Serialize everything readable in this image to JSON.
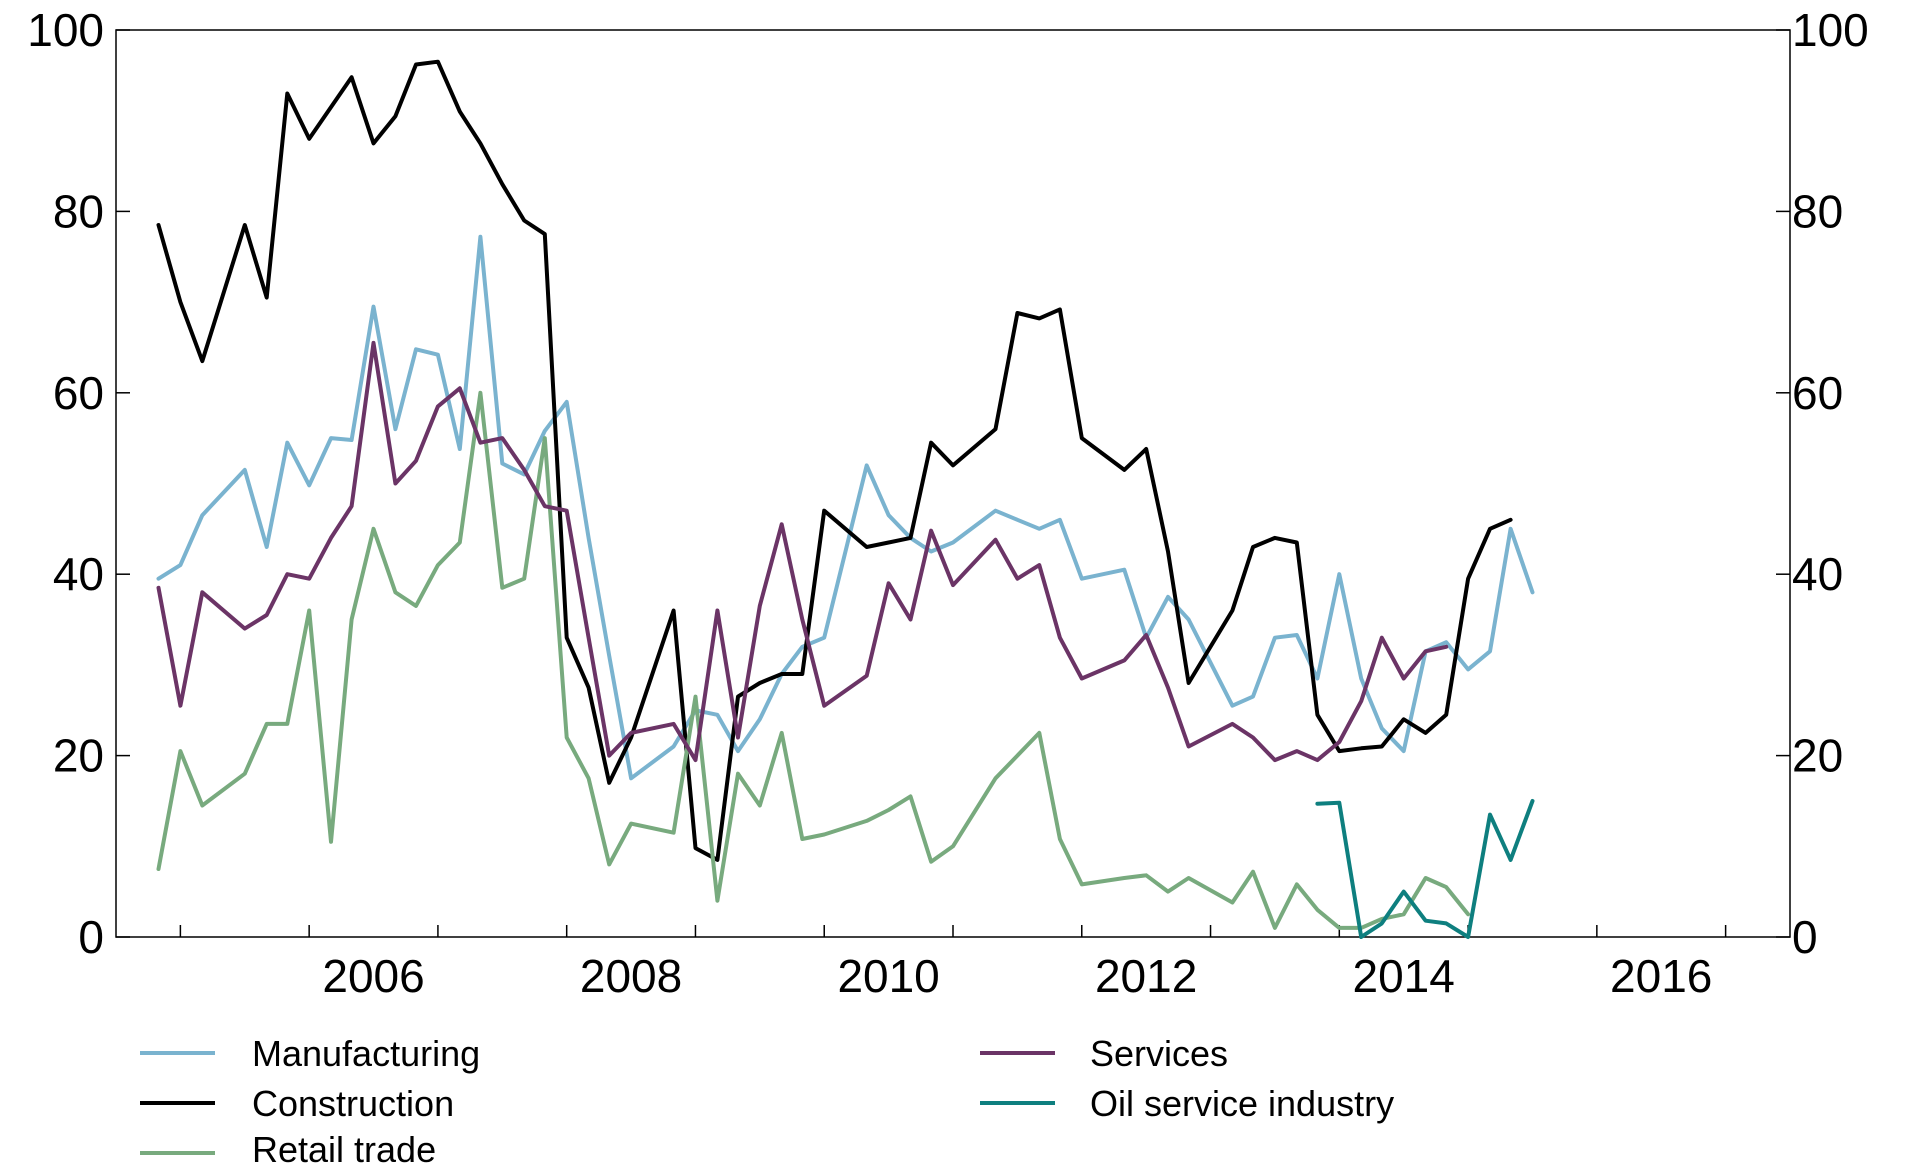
{
  "chart_data": {
    "type": "line",
    "title": "",
    "xlabel": "",
    "ylabel": "",
    "xlim": [
      2004.5,
      2017.5
    ],
    "ylim": [
      0,
      100
    ],
    "x_ticks": [
      "2006",
      "2008",
      "2010",
      "2012",
      "2014",
      "2016"
    ],
    "y_ticks_left": [
      "0",
      "20",
      "40",
      "60",
      "80",
      "100"
    ],
    "y_ticks_right": [
      "0",
      "20",
      "40",
      "60",
      "80",
      "100"
    ],
    "grid": false,
    "legend_position": "bottom",
    "series": [
      {
        "name": "Manufacturing",
        "color": "#7ab3cf",
        "points": [
          [
            2004.83,
            39.5
          ],
          [
            2005.0,
            41.0
          ],
          [
            2005.17,
            46.5
          ],
          [
            2005.5,
            51.5
          ],
          [
            2005.67,
            43.0
          ],
          [
            2005.83,
            54.5
          ],
          [
            2006.0,
            49.8
          ],
          [
            2006.17,
            55.0
          ],
          [
            2006.33,
            54.8
          ],
          [
            2006.5,
            69.5
          ],
          [
            2006.67,
            56.0
          ],
          [
            2006.83,
            64.8
          ],
          [
            2007.0,
            64.2
          ],
          [
            2007.17,
            53.8
          ],
          [
            2007.33,
            77.2
          ],
          [
            2007.5,
            52.2
          ],
          [
            2007.67,
            51.0
          ],
          [
            2007.83,
            55.8
          ],
          [
            2008.0,
            59.0
          ],
          [
            2008.17,
            44.0
          ],
          [
            2008.33,
            31.0
          ],
          [
            2008.5,
            17.5
          ],
          [
            2008.83,
            21.0
          ],
          [
            2009.0,
            25.0
          ],
          [
            2009.17,
            24.5
          ],
          [
            2009.33,
            20.5
          ],
          [
            2009.5,
            24.0
          ],
          [
            2009.67,
            29.0
          ],
          [
            2009.83,
            32.0
          ],
          [
            2010.0,
            33.0
          ],
          [
            2010.33,
            52.0
          ],
          [
            2010.5,
            46.5
          ],
          [
            2010.67,
            44.0
          ],
          [
            2010.83,
            42.5
          ],
          [
            2011.0,
            43.5
          ],
          [
            2011.33,
            47.0
          ],
          [
            2011.5,
            46.0
          ],
          [
            2011.67,
            45.0
          ],
          [
            2011.83,
            46.0
          ],
          [
            2012.0,
            39.5
          ],
          [
            2012.33,
            40.5
          ],
          [
            2012.5,
            33.0
          ],
          [
            2012.67,
            37.5
          ],
          [
            2012.83,
            35.0
          ],
          [
            2013.17,
            25.5
          ],
          [
            2013.33,
            26.5
          ],
          [
            2013.5,
            33.0
          ],
          [
            2013.67,
            33.3
          ],
          [
            2013.83,
            28.5
          ],
          [
            2014.0,
            40.0
          ],
          [
            2014.17,
            28.5
          ],
          [
            2014.33,
            23.0
          ],
          [
            2014.5,
            20.5
          ],
          [
            2014.67,
            31.5
          ],
          [
            2014.83,
            32.5
          ],
          [
            2015.0,
            29.5
          ],
          [
            2015.17,
            31.5
          ],
          [
            2015.33,
            45.0
          ],
          [
            2015.5,
            38.0
          ]
        ]
      },
      {
        "name": "Construction",
        "color": "#000000",
        "points": [
          [
            2004.83,
            78.5
          ],
          [
            2005.0,
            70.0
          ],
          [
            2005.17,
            63.5
          ],
          [
            2005.5,
            78.5
          ],
          [
            2005.67,
            70.5
          ],
          [
            2005.83,
            93.0
          ],
          [
            2006.0,
            88.0
          ],
          [
            2006.17,
            91.5
          ],
          [
            2006.33,
            94.8
          ],
          [
            2006.5,
            87.5
          ],
          [
            2006.67,
            90.5
          ],
          [
            2006.83,
            96.2
          ],
          [
            2007.0,
            96.5
          ],
          [
            2007.17,
            91.0
          ],
          [
            2007.33,
            87.5
          ],
          [
            2007.5,
            83.0
          ],
          [
            2007.67,
            79.0
          ],
          [
            2007.83,
            77.5
          ],
          [
            2008.0,
            33.0
          ],
          [
            2008.17,
            27.5
          ],
          [
            2008.33,
            17.0
          ],
          [
            2008.5,
            22.0
          ],
          [
            2008.83,
            36.0
          ],
          [
            2009.0,
            9.8
          ],
          [
            2009.17,
            8.5
          ],
          [
            2009.33,
            26.5
          ],
          [
            2009.5,
            28.0
          ],
          [
            2009.67,
            29.0
          ],
          [
            2009.83,
            29.0
          ],
          [
            2010.0,
            47.0
          ],
          [
            2010.33,
            43.0
          ],
          [
            2010.5,
            43.5
          ],
          [
            2010.67,
            44.0
          ],
          [
            2010.83,
            54.5
          ],
          [
            2011.0,
            52.0
          ],
          [
            2011.33,
            56.0
          ],
          [
            2011.5,
            68.8
          ],
          [
            2011.67,
            68.2
          ],
          [
            2011.83,
            69.2
          ],
          [
            2012.0,
            55.0
          ],
          [
            2012.33,
            51.5
          ],
          [
            2012.5,
            53.8
          ],
          [
            2012.67,
            42.5
          ],
          [
            2012.83,
            28.0
          ],
          [
            2013.17,
            36.0
          ],
          [
            2013.33,
            43.0
          ],
          [
            2013.5,
            44.0
          ],
          [
            2013.67,
            43.5
          ],
          [
            2013.83,
            24.5
          ],
          [
            2014.0,
            20.5
          ],
          [
            2014.17,
            20.8
          ],
          [
            2014.33,
            21.0
          ],
          [
            2014.5,
            24.0
          ],
          [
            2014.67,
            22.5
          ],
          [
            2014.83,
            24.5
          ],
          [
            2015.0,
            39.5
          ],
          [
            2015.17,
            45.0
          ],
          [
            2015.33,
            46.0
          ]
        ]
      },
      {
        "name": "Retail trade",
        "color": "#78aa7e",
        "points": [
          [
            2004.83,
            7.5
          ],
          [
            2005.0,
            20.5
          ],
          [
            2005.17,
            14.5
          ],
          [
            2005.5,
            18.0
          ],
          [
            2005.67,
            23.5
          ],
          [
            2005.83,
            23.5
          ],
          [
            2006.0,
            36.0
          ],
          [
            2006.17,
            10.5
          ],
          [
            2006.33,
            35.0
          ],
          [
            2006.5,
            45.0
          ],
          [
            2006.67,
            38.0
          ],
          [
            2006.83,
            36.5
          ],
          [
            2007.0,
            41.0
          ],
          [
            2007.17,
            43.5
          ],
          [
            2007.33,
            60.0
          ],
          [
            2007.5,
            38.5
          ],
          [
            2007.67,
            39.5
          ],
          [
            2007.83,
            55.0
          ],
          [
            2008.0,
            22.0
          ],
          [
            2008.17,
            17.5
          ],
          [
            2008.33,
            8.0
          ],
          [
            2008.5,
            12.5
          ],
          [
            2008.83,
            11.5
          ],
          [
            2009.0,
            26.5
          ],
          [
            2009.17,
            4.0
          ],
          [
            2009.33,
            18.0
          ],
          [
            2009.5,
            14.5
          ],
          [
            2009.67,
            22.5
          ],
          [
            2009.83,
            10.8
          ],
          [
            2010.0,
            11.3
          ],
          [
            2010.33,
            12.8
          ],
          [
            2010.5,
            14.0
          ],
          [
            2010.67,
            15.5
          ],
          [
            2010.83,
            8.3
          ],
          [
            2011.0,
            10.0
          ],
          [
            2011.33,
            17.5
          ],
          [
            2011.5,
            20.0
          ],
          [
            2011.67,
            22.5
          ],
          [
            2011.83,
            10.8
          ],
          [
            2012.0,
            5.8
          ],
          [
            2012.33,
            6.5
          ],
          [
            2012.5,
            6.8
          ],
          [
            2012.67,
            5.0
          ],
          [
            2012.83,
            6.5
          ],
          [
            2013.17,
            3.8
          ],
          [
            2013.33,
            7.2
          ],
          [
            2013.5,
            1.0
          ],
          [
            2013.67,
            5.8
          ],
          [
            2013.83,
            3.0
          ],
          [
            2014.0,
            1.0
          ],
          [
            2014.17,
            1.0
          ],
          [
            2014.33,
            2.0
          ],
          [
            2014.5,
            2.5
          ],
          [
            2014.67,
            6.5
          ],
          [
            2014.83,
            5.5
          ],
          [
            2015.0,
            2.5
          ]
        ]
      },
      {
        "name": "Services",
        "color": "#6b3466",
        "points": [
          [
            2004.83,
            38.5
          ],
          [
            2005.0,
            25.5
          ],
          [
            2005.17,
            38.0
          ],
          [
            2005.5,
            34.0
          ],
          [
            2005.67,
            35.5
          ],
          [
            2005.83,
            40.0
          ],
          [
            2006.0,
            39.5
          ],
          [
            2006.17,
            44.0
          ],
          [
            2006.33,
            47.5
          ],
          [
            2006.5,
            65.5
          ],
          [
            2006.67,
            50.0
          ],
          [
            2006.83,
            52.5
          ],
          [
            2007.0,
            58.5
          ],
          [
            2007.17,
            60.5
          ],
          [
            2007.33,
            54.5
          ],
          [
            2007.5,
            55.0
          ],
          [
            2007.67,
            51.5
          ],
          [
            2007.83,
            47.5
          ],
          [
            2008.0,
            47.0
          ],
          [
            2008.17,
            33.0
          ],
          [
            2008.33,
            20.0
          ],
          [
            2008.5,
            22.5
          ],
          [
            2008.83,
            23.5
          ],
          [
            2009.0,
            19.5
          ],
          [
            2009.17,
            36.0
          ],
          [
            2009.33,
            22.0
          ],
          [
            2009.5,
            36.5
          ],
          [
            2009.67,
            45.5
          ],
          [
            2009.83,
            35.0
          ],
          [
            2010.0,
            25.5
          ],
          [
            2010.33,
            28.8
          ],
          [
            2010.5,
            39.0
          ],
          [
            2010.67,
            35.0
          ],
          [
            2010.83,
            44.8
          ],
          [
            2011.0,
            38.8
          ],
          [
            2011.33,
            43.8
          ],
          [
            2011.5,
            39.5
          ],
          [
            2011.67,
            41.0
          ],
          [
            2011.83,
            33.0
          ],
          [
            2012.0,
            28.5
          ],
          [
            2012.33,
            30.5
          ],
          [
            2012.5,
            33.3
          ],
          [
            2012.67,
            27.5
          ],
          [
            2012.83,
            21.0
          ],
          [
            2013.17,
            23.5
          ],
          [
            2013.33,
            22.0
          ],
          [
            2013.5,
            19.5
          ],
          [
            2013.67,
            20.5
          ],
          [
            2013.83,
            19.5
          ],
          [
            2014.0,
            21.5
          ],
          [
            2014.17,
            26.0
          ],
          [
            2014.33,
            33.0
          ],
          [
            2014.5,
            28.5
          ],
          [
            2014.67,
            31.5
          ],
          [
            2014.83,
            32.0
          ]
        ]
      },
      {
        "name": "Oil service industry",
        "color": "#0e7f7f",
        "points": [
          [
            2013.83,
            14.7
          ],
          [
            2014.0,
            14.8
          ],
          [
            2014.17,
            0.0
          ],
          [
            2014.33,
            1.5
          ],
          [
            2014.5,
            5.0
          ],
          [
            2014.67,
            1.8
          ],
          [
            2014.83,
            1.5
          ],
          [
            2015.0,
            0.0
          ],
          [
            2015.17,
            13.5
          ],
          [
            2015.33,
            8.5
          ],
          [
            2015.5,
            15.0
          ]
        ]
      }
    ]
  }
}
